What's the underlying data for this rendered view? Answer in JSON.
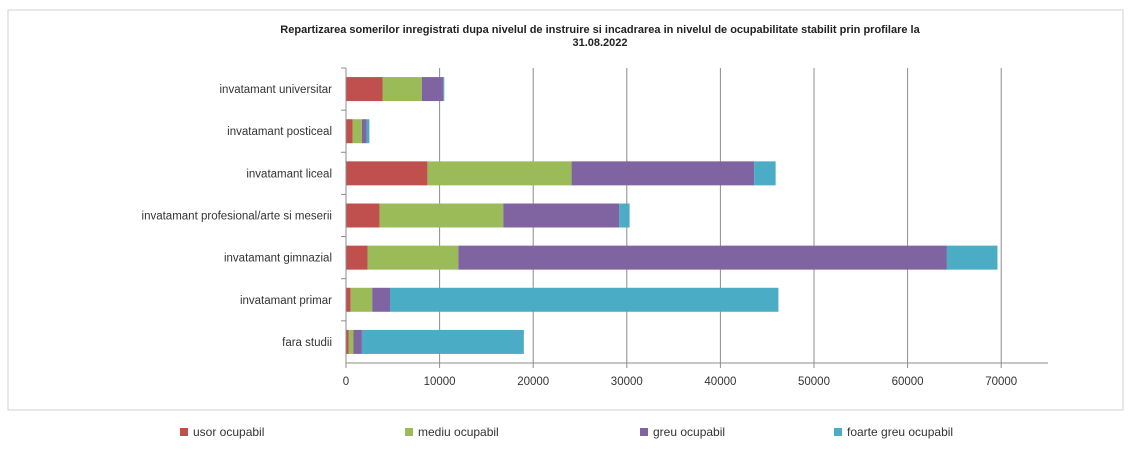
{
  "chart_data": {
    "type": "bar",
    "orientation": "horizontal",
    "stacked": true,
    "title_line1": "Repartizarea somerilor inregistrati dupa  nivelul de instruire si incadrarea in nivelul de ocupabilitate stabilit prin profilare la",
    "title_line2": "31.08.2022",
    "xlabel": "",
    "ylabel": "",
    "xlim": [
      0,
      75000
    ],
    "xticks": [
      0,
      10000,
      20000,
      30000,
      40000,
      50000,
      60000,
      70000
    ],
    "xtick_labels": [
      "0",
      "10000",
      "20000",
      "30000",
      "40000",
      "50000",
      "60000",
      "70000"
    ],
    "grid": "vertical",
    "legend_position": "bottom",
    "categories": [
      "invatamant universitar",
      "invatamant posticeal",
      "invatamant liceal",
      "invatamant profesional/arte si meserii",
      "invatamant gimnazial",
      "invatamant primar",
      "fara studii"
    ],
    "series": [
      {
        "name": "usor ocupabil",
        "color": "#C0504D",
        "values": [
          3900,
          700,
          8700,
          3600,
          2300,
          500,
          300
        ]
      },
      {
        "name": "mediu ocupabil",
        "color": "#9BBB59",
        "values": [
          4200,
          1000,
          15400,
          13200,
          9700,
          2300,
          500
        ]
      },
      {
        "name": "greu ocupabil",
        "color": "#8064A2",
        "values": [
          2300,
          500,
          19500,
          12400,
          52200,
          1900,
          900
        ]
      },
      {
        "name": "foarte greu ocupabil",
        "color": "#4BACC6",
        "values": [
          100,
          300,
          2300,
          1100,
          5400,
          41500,
          17300
        ]
      }
    ]
  }
}
